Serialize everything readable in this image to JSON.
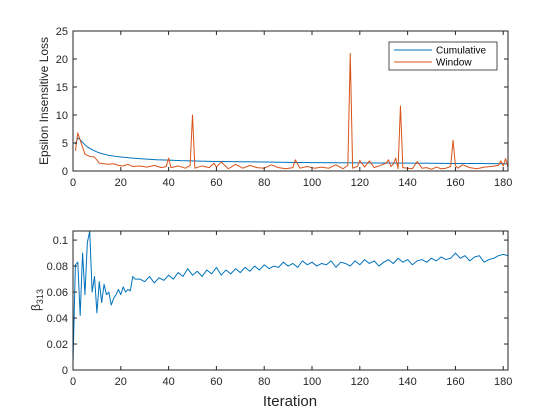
{
  "chart_data": [
    {
      "type": "line",
      "xlabel": "",
      "ylabel": "Epsilon Insensitive Loss",
      "xlim": [
        0,
        182
      ],
      "ylim": [
        0,
        25
      ],
      "xticks": [
        "0",
        "20",
        "40",
        "60",
        "80",
        "100",
        "120",
        "140",
        "160",
        "180"
      ],
      "yticks": [
        "0",
        "5",
        "10",
        "15",
        "20",
        "25"
      ],
      "legend_position": "top-right",
      "series": [
        {
          "name": "Cumulative",
          "color": "#0072BD",
          "x": [
            1,
            2,
            3,
            4,
            5,
            6,
            8,
            10,
            12,
            15,
            18,
            20,
            25,
            30,
            35,
            40,
            45,
            50,
            55,
            60,
            70,
            80,
            90,
            100,
            110,
            120,
            130,
            140,
            150,
            160,
            170,
            180,
            182
          ],
          "y": [
            4.8,
            5.9,
            5.6,
            5.1,
            4.7,
            4.3,
            3.8,
            3.4,
            3.1,
            2.8,
            2.6,
            2.5,
            2.3,
            2.15,
            2.0,
            1.95,
            1.85,
            1.8,
            1.75,
            1.7,
            1.65,
            1.6,
            1.55,
            1.5,
            1.48,
            1.45,
            1.43,
            1.4,
            1.38,
            1.35,
            1.33,
            1.3,
            1.3
          ]
        },
        {
          "name": "Window",
          "color": "#D95319",
          "x": [
            1,
            2,
            3,
            5,
            7,
            9,
            11,
            13,
            15,
            17,
            19,
            21,
            23,
            25,
            28,
            31,
            34,
            37,
            39,
            40,
            41,
            44,
            47,
            49,
            50,
            51,
            54,
            57,
            59,
            60,
            62,
            65,
            68,
            71,
            74,
            77,
            80,
            83,
            86,
            89,
            92,
            93,
            95,
            98,
            101,
            104,
            107,
            110,
            113,
            115,
            116,
            117,
            119,
            120,
            122,
            124,
            126,
            128,
            131,
            132,
            133,
            134,
            135,
            136,
            137,
            138,
            140,
            142,
            144,
            146,
            148,
            150,
            152,
            154,
            156,
            158,
            159,
            160,
            161,
            163,
            166,
            169,
            172,
            175,
            178,
            179,
            180,
            181,
            182
          ],
          "y": [
            3.6,
            6.8,
            5.5,
            3.0,
            2.6,
            2.5,
            1.4,
            1.3,
            1.2,
            1.3,
            1.0,
            0.9,
            1.2,
            0.8,
            0.9,
            0.7,
            1.0,
            0.6,
            0.8,
            2.3,
            0.6,
            0.9,
            0.5,
            1.0,
            10.0,
            0.5,
            0.9,
            0.6,
            1.4,
            0.7,
            1.6,
            0.4,
            1.2,
            0.5,
            1.0,
            0.6,
            0.5,
            1.1,
            0.6,
            0.4,
            0.6,
            2.0,
            0.5,
            0.8,
            0.5,
            0.7,
            0.5,
            1.1,
            0.4,
            1.0,
            21.0,
            0.5,
            0.8,
            1.9,
            0.7,
            1.8,
            0.6,
            0.9,
            1.4,
            2.0,
            0.8,
            1.2,
            2.3,
            0.4,
            11.6,
            0.6,
            0.5,
            0.4,
            1.7,
            0.5,
            0.6,
            0.3,
            0.7,
            0.4,
            0.5,
            0.8,
            5.5,
            1.0,
            0.5,
            1.1,
            0.6,
            0.4,
            0.7,
            0.8,
            1.0,
            1.8,
            0.9,
            2.2,
            0.7
          ]
        }
      ]
    },
    {
      "type": "line",
      "xlabel": "Iteration",
      "ylabel": "β313",
      "ylabel_main": "β",
      "ylabel_sub": "313",
      "xlim": [
        0,
        182
      ],
      "ylim": [
        0,
        0.107
      ],
      "xticks": [
        "0",
        "20",
        "40",
        "60",
        "80",
        "100",
        "120",
        "140",
        "160",
        "180"
      ],
      "yticks": [
        "0",
        "0.02",
        "0.04",
        "0.06",
        "0.08",
        "0.1"
      ],
      "series": [
        {
          "color": "#0072BD",
          "x": [
            0,
            1,
            2,
            3,
            4,
            5,
            6,
            7,
            8,
            9,
            10,
            11,
            12,
            13,
            14,
            15,
            16,
            17,
            18,
            19,
            20,
            21,
            22,
            23,
            24,
            25,
            26,
            28,
            30,
            32,
            34,
            36,
            38,
            40,
            42,
            44,
            46,
            48,
            50,
            52,
            54,
            56,
            58,
            60,
            62,
            64,
            66,
            68,
            70,
            72,
            74,
            76,
            78,
            80,
            82,
            84,
            86,
            88,
            90,
            92,
            94,
            96,
            98,
            100,
            102,
            104,
            106,
            108,
            110,
            112,
            114,
            116,
            118,
            120,
            122,
            124,
            126,
            128,
            130,
            132,
            134,
            136,
            138,
            140,
            142,
            144,
            146,
            148,
            150,
            152,
            154,
            156,
            158,
            160,
            162,
            164,
            166,
            168,
            170,
            172,
            174,
            176,
            178,
            180,
            182
          ],
          "y": [
            0.005,
            0.081,
            0.083,
            0.042,
            0.09,
            0.058,
            0.098,
            0.107,
            0.06,
            0.072,
            0.044,
            0.068,
            0.052,
            0.066,
            0.058,
            0.06,
            0.05,
            0.055,
            0.058,
            0.062,
            0.058,
            0.064,
            0.06,
            0.062,
            0.061,
            0.072,
            0.07,
            0.07,
            0.068,
            0.072,
            0.067,
            0.071,
            0.069,
            0.073,
            0.07,
            0.075,
            0.072,
            0.078,
            0.073,
            0.076,
            0.072,
            0.077,
            0.074,
            0.079,
            0.073,
            0.077,
            0.074,
            0.078,
            0.075,
            0.079,
            0.076,
            0.08,
            0.077,
            0.081,
            0.078,
            0.08,
            0.079,
            0.083,
            0.08,
            0.082,
            0.079,
            0.084,
            0.081,
            0.083,
            0.08,
            0.082,
            0.081,
            0.084,
            0.079,
            0.083,
            0.082,
            0.08,
            0.084,
            0.081,
            0.085,
            0.082,
            0.084,
            0.08,
            0.083,
            0.085,
            0.082,
            0.086,
            0.083,
            0.085,
            0.081,
            0.084,
            0.085,
            0.083,
            0.086,
            0.084,
            0.087,
            0.085,
            0.086,
            0.09,
            0.086,
            0.088,
            0.084,
            0.087,
            0.088,
            0.083,
            0.085,
            0.086,
            0.088,
            0.089,
            0.088
          ]
        }
      ]
    }
  ]
}
